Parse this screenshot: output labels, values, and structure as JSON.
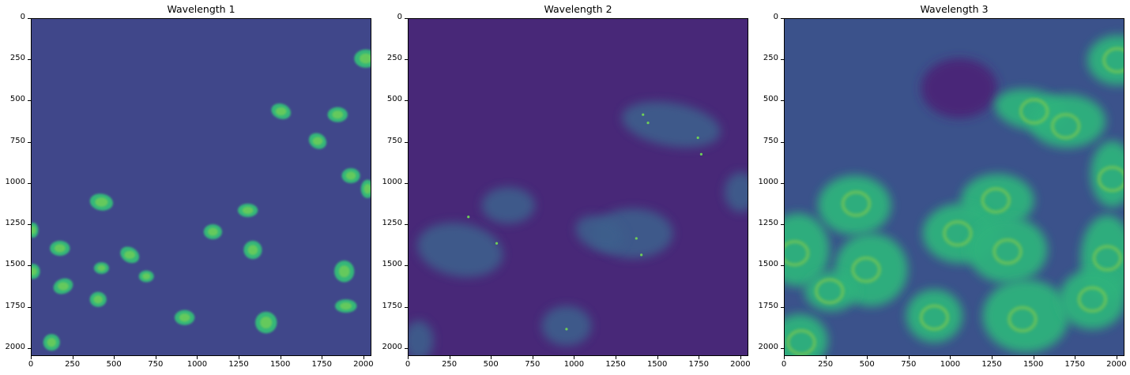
{
  "figure": {
    "colormap": "viridis",
    "panels": [
      {
        "title": "Wavelength 1",
        "channel": "nuclei"
      },
      {
        "title": "Wavelength 2",
        "channel": "puncta"
      },
      {
        "title": "Wavelength 3",
        "channel": "cytoplasm"
      }
    ],
    "axes": {
      "x_ticks": [
        "0",
        "250",
        "500",
        "750",
        "1000",
        "1250",
        "1500",
        "1750",
        "2000"
      ],
      "y_ticks": [
        "0",
        "250",
        "500",
        "750",
        "1000",
        "1250",
        "1500",
        "1750",
        "2000"
      ],
      "x_range": [
        0,
        2048
      ],
      "y_range": [
        2048,
        0
      ]
    },
    "colors": {
      "background_low": "#482878",
      "mid": "#31688e",
      "high": "#35b779",
      "peak": "#bddf26"
    }
  }
}
